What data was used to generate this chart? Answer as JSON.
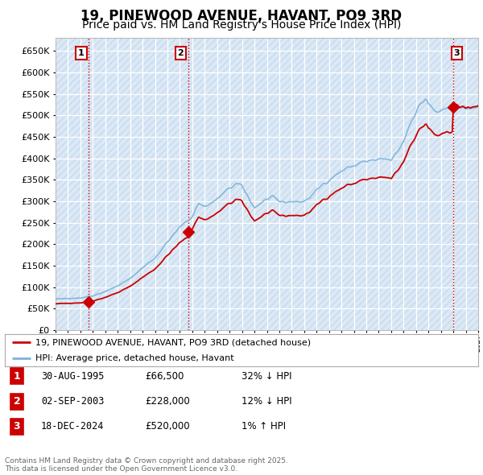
{
  "title": "19, PINEWOOD AVENUE, HAVANT, PO9 3RD",
  "subtitle": "Price paid vs. HM Land Registry's House Price Index (HPI)",
  "title_fontsize": 12,
  "subtitle_fontsize": 10,
  "background_color": "#ffffff",
  "plot_bg_color": "#dce9f5",
  "grid_color": "#ffffff",
  "ylim": [
    0,
    680000
  ],
  "yticks": [
    0,
    50000,
    100000,
    150000,
    200000,
    250000,
    300000,
    350000,
    400000,
    450000,
    500000,
    550000,
    600000,
    650000
  ],
  "xlim_start": 1993.0,
  "xlim_end": 2027.0,
  "hpi_color": "#7ab3d8",
  "price_color": "#cc0000",
  "sale_marker_color": "#cc0000",
  "sale_marker_size": 7,
  "purchases": [
    {
      "year": 1995.667,
      "price": 66500,
      "label": "1"
    },
    {
      "year": 2003.67,
      "price": 228000,
      "label": "2"
    },
    {
      "year": 2024.96,
      "price": 520000,
      "label": "3"
    }
  ],
  "label_box_color": "#cc0000",
  "legend_entries": [
    {
      "label": "19, PINEWOOD AVENUE, HAVANT, PO9 3RD (detached house)",
      "color": "#cc0000",
      "lw": 2
    },
    {
      "label": "HPI: Average price, detached house, Havant",
      "color": "#7ab3d8",
      "lw": 2
    }
  ],
  "table_rows": [
    {
      "num": "1",
      "date": "30-AUG-1995",
      "price": "£66,500",
      "hpi": "32% ↓ HPI"
    },
    {
      "num": "2",
      "date": "02-SEP-2003",
      "price": "£228,000",
      "hpi": "12% ↓ HPI"
    },
    {
      "num": "3",
      "date": "18-DEC-2024",
      "price": "£520,000",
      "hpi": "1% ↑ HPI"
    }
  ],
  "footnote": "Contains HM Land Registry data © Crown copyright and database right 2025.\nThis data is licensed under the Open Government Licence v3.0.",
  "vline_color": "#cc0000",
  "vline_style": ":"
}
